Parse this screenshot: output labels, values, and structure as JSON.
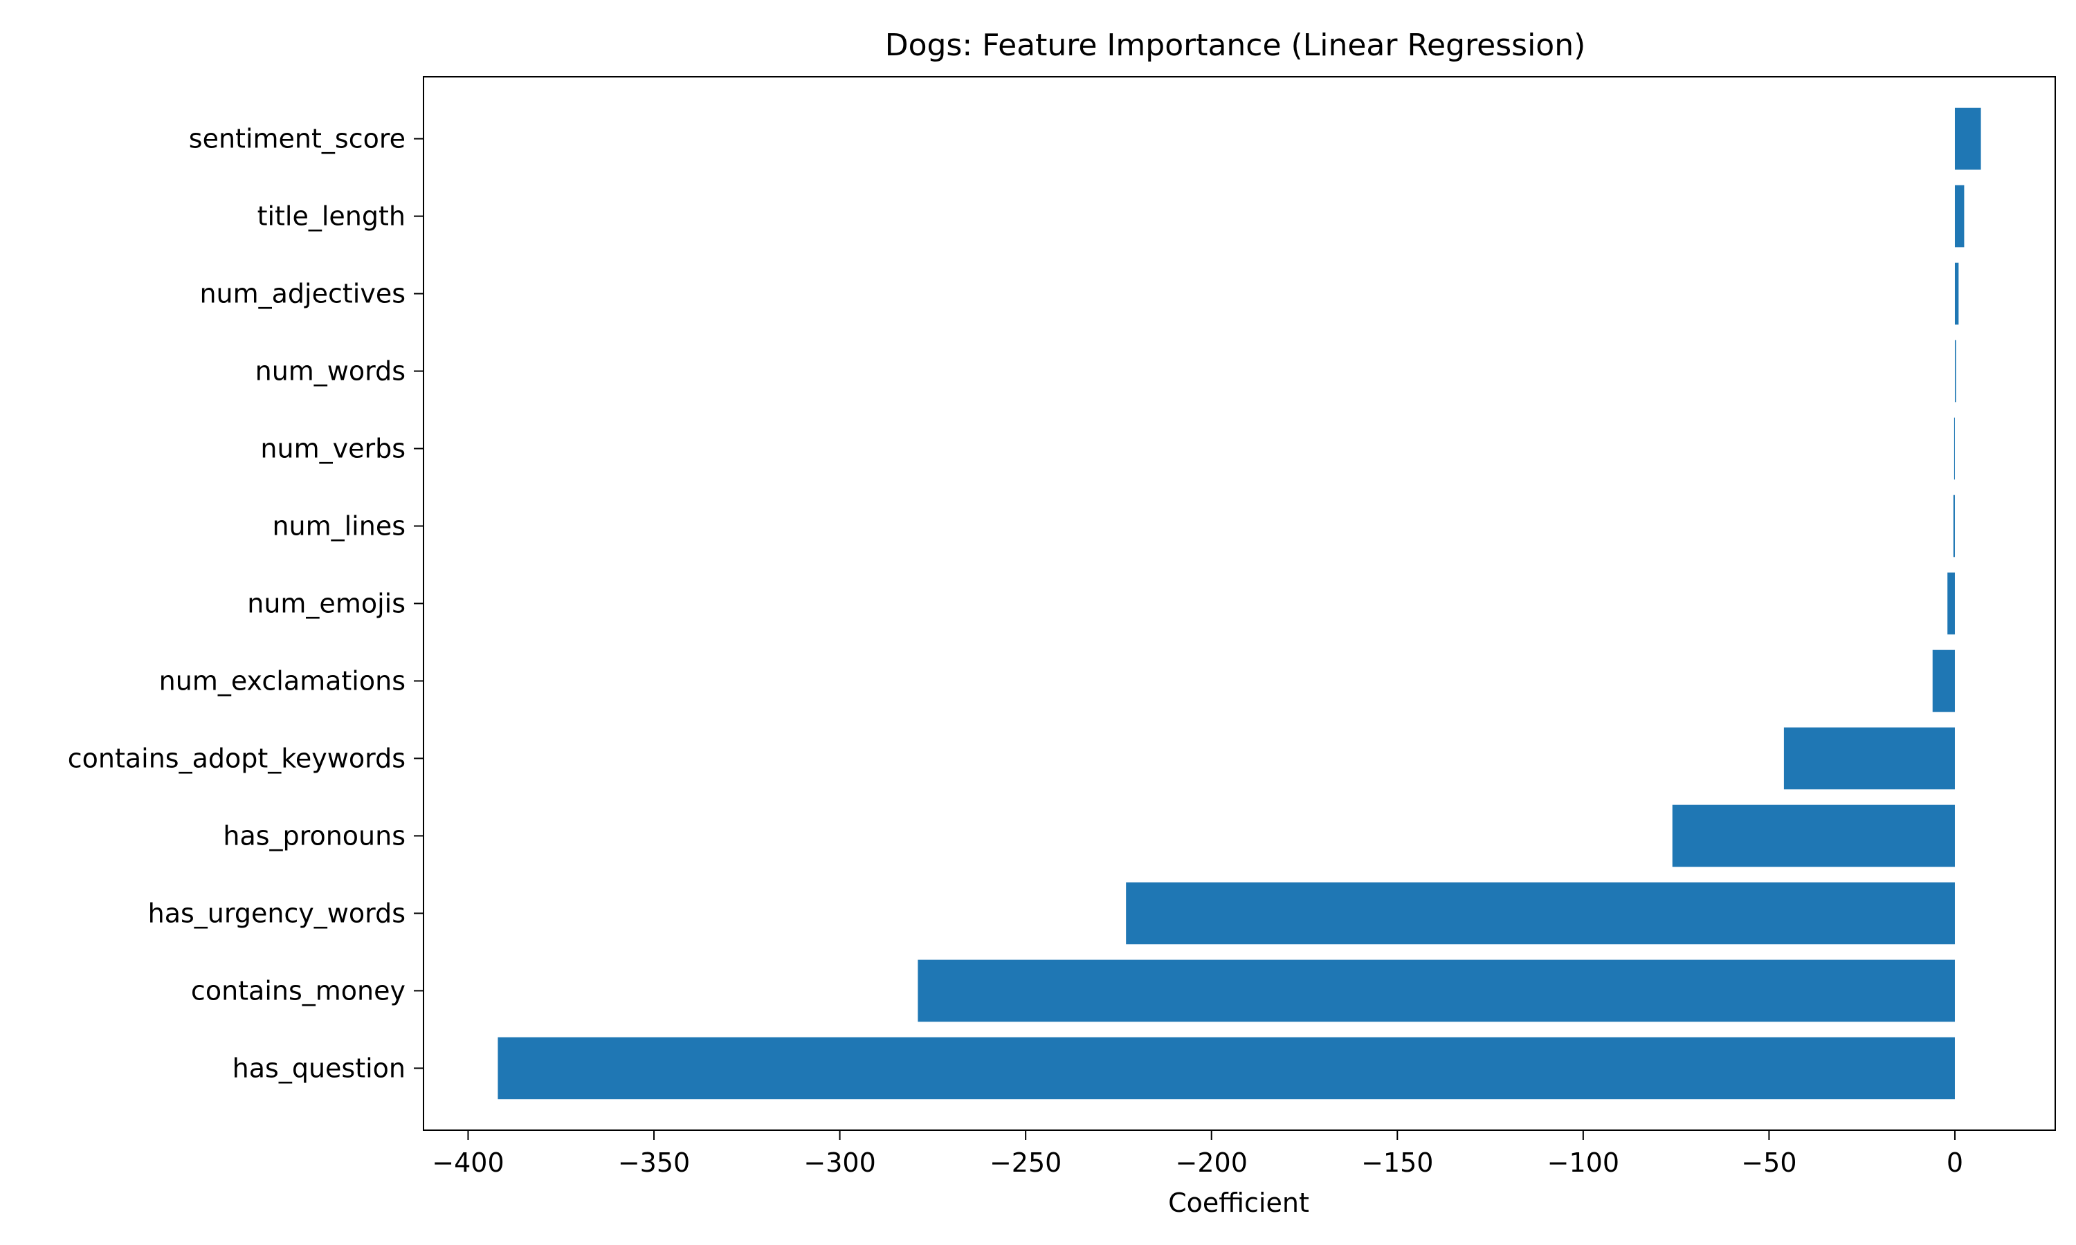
{
  "chart_data": {
    "type": "bar",
    "orientation": "horizontal",
    "title": "Dogs: Feature Importance (Linear Regression)",
    "xlabel": "Coefficient",
    "ylabel": "",
    "categories": [
      "sentiment_score",
      "title_length",
      "num_adjectives",
      "num_words",
      "num_verbs",
      "num_lines",
      "num_emojis",
      "num_exclamations",
      "contains_adopt_keywords",
      "has_pronouns",
      "has_urgency_words",
      "contains_money",
      "has_question"
    ],
    "values": [
      7,
      2.5,
      1,
      0.3,
      -0.2,
      -0.4,
      -2,
      -6,
      -46,
      -76,
      -223,
      -279,
      -392
    ],
    "xlim": [
      -412,
      27
    ],
    "xticks": [
      -400,
      -350,
      -300,
      -250,
      -200,
      -150,
      -100,
      -50,
      0
    ],
    "xtick_labels": [
      "−400",
      "−350",
      "−300",
      "−250",
      "−200",
      "−150",
      "−100",
      "−50",
      "0"
    ],
    "bar_color": "#1f77b4",
    "grid": false,
    "legend": "none"
  }
}
